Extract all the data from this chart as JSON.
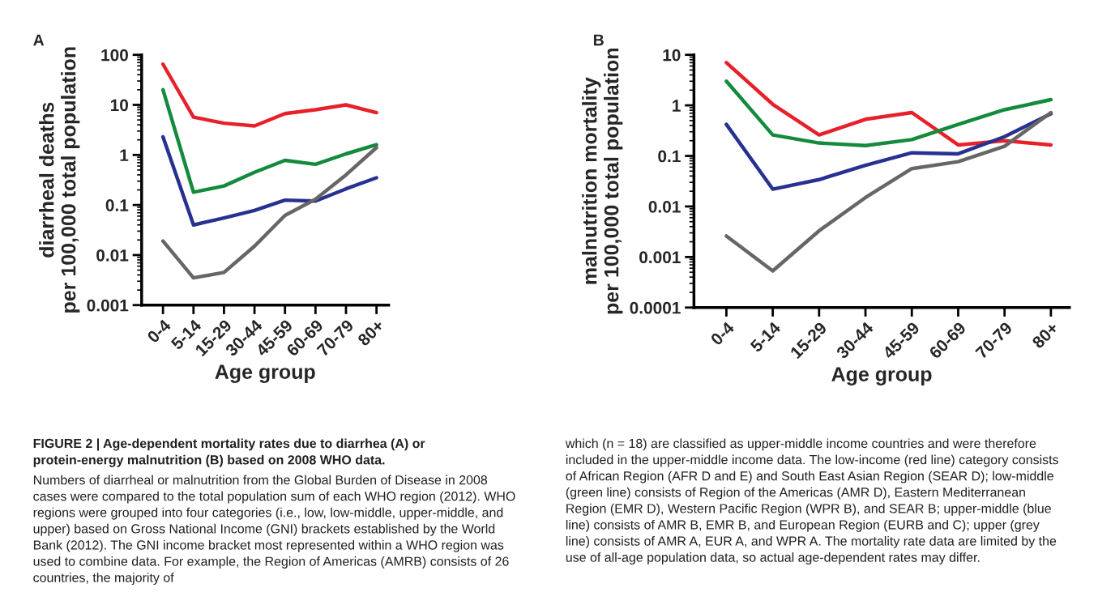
{
  "chart_data": [
    {
      "type": "line",
      "xlabel": "Age group",
      "ylabel": "diarrheal deaths\nper 100,000 total population",
      "categories": [
        "0-4",
        "5-14",
        "15-29",
        "30-44",
        "45-59",
        "60-69",
        "70-79",
        "80+"
      ],
      "log": "y",
      "ylim": [
        0.001,
        100
      ],
      "yticks": [
        0.001,
        0.01,
        0.1,
        1,
        10,
        100
      ],
      "grid": false,
      "legend": false,
      "marker": "none",
      "line_style": "solid",
      "series": [
        {
          "color": "#e8202a",
          "values": [
            65,
            5.7,
            4.3,
            3.8,
            6.7,
            8,
            10,
            7
          ]
        },
        {
          "color": "#138a3c",
          "values": [
            20,
            0.18,
            0.24,
            0.45,
            0.78,
            0.65,
            1.05,
            1.6
          ]
        },
        {
          "color": "#27318f",
          "values": [
            2.3,
            0.04,
            0.055,
            0.078,
            0.125,
            0.12,
            0.21,
            0.35
          ]
        },
        {
          "color": "#666666",
          "values": [
            0.019,
            0.0035,
            0.0045,
            0.015,
            0.062,
            0.13,
            0.4,
            1.4
          ]
        }
      ],
      "annotations": [
        "A",
        "FIGURE 2 | Age-dependent mortality rates due to diarrhea (A) or protein-energy malnutrition (B) based on 2008 WHO data.",
        "Numbers of diarrheal or malnutrition from the Global Burden of Disease in 2008 cases were compared to the total population sum of each WHO region (2012). WHO regions were grouped into four categories (i.e., low, low-middle, upper-middle, and upper) based on Gross National Income (GNI) brackets established by the World Bank (2012). The GNI income bracket most represented within a WHO region was used to combine data. For example, the Region of Americas (AMRB) consists of 26 countries, the majority of"
      ]
    },
    {
      "type": "line",
      "xlabel": "Age group",
      "ylabel": "malnutrition mortality\nper 100,000 total population",
      "categories": [
        "0-4",
        "5-14",
        "15-29",
        "30-44",
        "45-59",
        "60-69",
        "70-79",
        "80+"
      ],
      "log": "y",
      "ylim": [
        0.0001,
        10
      ],
      "yticks": [
        0.0001,
        0.001,
        0.01,
        0.1,
        1,
        10
      ],
      "grid": false,
      "legend": false,
      "marker": "none",
      "line_style": "solid",
      "series": [
        {
          "color": "#e8202a",
          "values": [
            7,
            1.05,
            0.26,
            0.53,
            0.72,
            0.165,
            0.2,
            0.165
          ]
        },
        {
          "color": "#138a3c",
          "values": [
            3,
            0.26,
            0.18,
            0.16,
            0.21,
            0.42,
            0.82,
            1.3
          ]
        },
        {
          "color": "#27318f",
          "values": [
            0.42,
            0.022,
            0.034,
            0.065,
            0.115,
            0.11,
            0.24,
            0.68
          ]
        },
        {
          "color": "#666666",
          "values": [
            0.0026,
            0.00053,
            0.0033,
            0.015,
            0.056,
            0.077,
            0.155,
            0.72
          ]
        }
      ],
      "annotations": [
        "B",
        "which (n = 18) are classified as upper-middle income countries and were therefore included in the upper-middle income data. The low-income (red line) category consists of African Region (AFR D and E) and South East Asian Region (SEAR D); low-middle (green line) consists of Region of the Americas (AMR D), Eastern Mediterranean Region (EMR D), Western Pacific Region (WPR B), and SEAR B; upper-middle (blue line) consists of AMR B, EMR B, and European Region (EURB and C); upper (grey line) consists of AMR A, EUR A, and WPR A. The mortality rate data are limited by the use of all-age population data, so actual age-dependent rates may differ."
      ]
    }
  ]
}
